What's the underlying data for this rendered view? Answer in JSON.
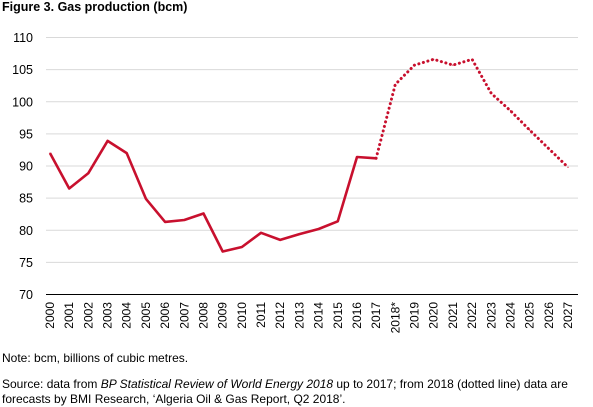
{
  "figure_title": "Figure 3. Gas production (bcm)",
  "note": "Note: bcm, billions of cubic metres.",
  "source": {
    "prefix": "Source: data from ",
    "italic": "BP Statistical Review of World Energy 2018",
    "suffix": " up to 2017; from 2018 (dotted line) data are forecasts by BMI Research, ‘Algeria Oil & Gas Report, Q2 2018’."
  },
  "colors": {
    "line": "#c8102e",
    "grid": "#d9d9d9",
    "axis": "#000000"
  },
  "chart_data": {
    "type": "line",
    "title": "",
    "xlabel": "",
    "ylabel": "",
    "ylim": [
      70,
      110
    ],
    "yticks": [
      70,
      75,
      80,
      85,
      90,
      95,
      100,
      105,
      110
    ],
    "grid": "horizontal",
    "categories": [
      "2000",
      "2001",
      "2002",
      "2003",
      "2004",
      "2005",
      "2006",
      "2007",
      "2008",
      "2009",
      "2010",
      "2011",
      "2012",
      "2013",
      "2014",
      "2015",
      "2016",
      "2017",
      "2018*",
      "2019",
      "2020",
      "2021",
      "2022",
      "2023",
      "2024",
      "2025",
      "2026",
      "2027"
    ],
    "series": [
      {
        "style": "solid",
        "note": "historical",
        "values": [
          92.0,
          86.5,
          88.9,
          93.9,
          92.0,
          84.9,
          81.3,
          81.6,
          82.6,
          76.7,
          77.4,
          79.6,
          78.5,
          79.4,
          80.2,
          81.4,
          91.4,
          91.2,
          null,
          null,
          null,
          null,
          null,
          null,
          null,
          null,
          null,
          null
        ]
      },
      {
        "style": "dotted",
        "note": "forecast",
        "values": [
          null,
          null,
          null,
          null,
          null,
          null,
          null,
          null,
          null,
          null,
          null,
          null,
          null,
          null,
          null,
          null,
          null,
          91.2,
          102.7,
          105.7,
          106.6,
          105.7,
          106.6,
          101.3,
          98.6,
          95.6,
          92.7,
          89.8
        ]
      }
    ]
  }
}
